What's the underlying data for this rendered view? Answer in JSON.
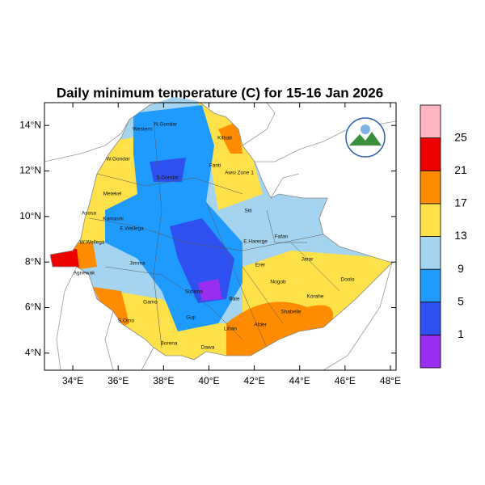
{
  "title": "Daily minimum temperature (C) for 15-16 Jan 2026",
  "map": {
    "xlim": [
      32.75,
      48.25
    ],
    "ylim": [
      3.25,
      15
    ],
    "xticks": [
      {
        "value": 34,
        "label": "34°E"
      },
      {
        "value": 36,
        "label": "36°E"
      },
      {
        "value": 38,
        "label": "38°E"
      },
      {
        "value": 40,
        "label": "40°E"
      },
      {
        "value": 42,
        "label": "42°E"
      },
      {
        "value": 44,
        "label": "44°E"
      },
      {
        "value": 46,
        "label": "46°E"
      },
      {
        "value": 48,
        "label": "48°E"
      }
    ],
    "yticks": [
      {
        "value": 4,
        "label": "4°N"
      },
      {
        "value": 6,
        "label": "6°N"
      },
      {
        "value": 8,
        "label": "8°N"
      },
      {
        "value": 10,
        "label": "10°N"
      },
      {
        "value": 12,
        "label": "12°N"
      },
      {
        "value": 14,
        "label": "14°N"
      }
    ],
    "regions": [
      "Western",
      "N.Gondar",
      "Kilbati",
      "W.Gondar",
      "S.Gondar",
      "Fanti",
      "Metekel",
      "Awsi Zone 1",
      "Kamashi",
      "Siti",
      "Asosa",
      "E.Wellega",
      "Fafan",
      "Jarar",
      "W.Wellega",
      "E.Harerge",
      "Jimma",
      "Erer",
      "Doolo",
      "Agnewak",
      "Sidama",
      "Nogob",
      "Bale",
      "Korahe",
      "Shabelle",
      "Gamo",
      "Afder",
      "Liban",
      "S.Omo",
      "Borena",
      "Dawa",
      "Guji"
    ]
  },
  "colorbar": {
    "levels": [
      1,
      5,
      9,
      13,
      17,
      21,
      25
    ],
    "colors": [
      "#9a2ef0",
      "#2f50f0",
      "#1f9bff",
      "#a4d4f0",
      "#ffe14a",
      "#ff8c00",
      "#ee0000",
      "#ffb6c1"
    ]
  }
}
